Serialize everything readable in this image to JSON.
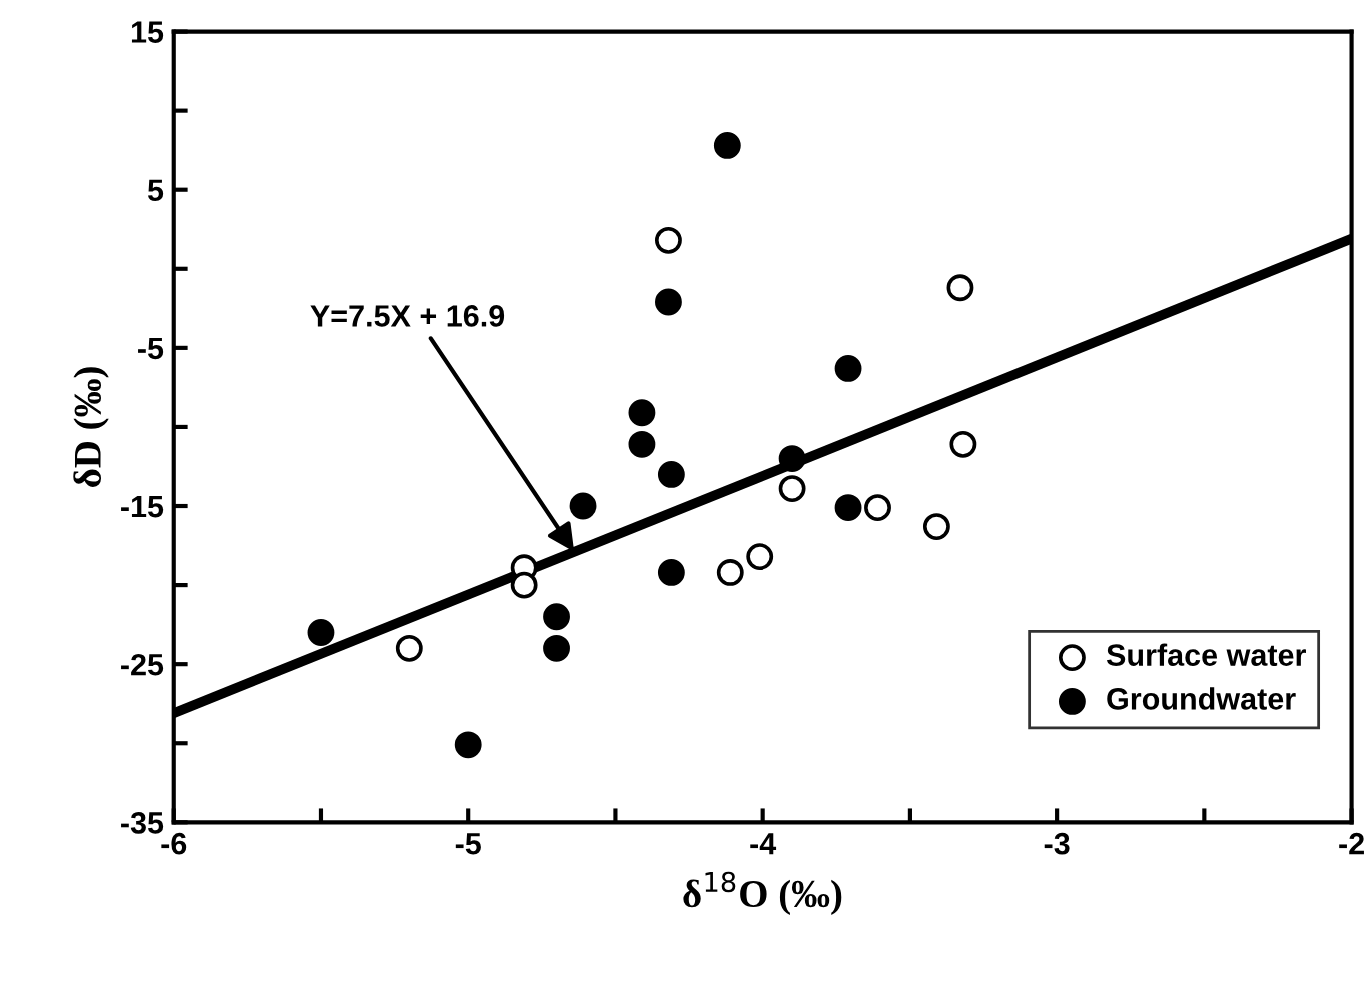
{
  "chart_data": {
    "type": "scatter",
    "xlabel": "δ$^{18}$O (‰)",
    "ylabel": "δD (‰)",
    "xlim": [
      -6,
      -2
    ],
    "ylim": [
      -35,
      15
    ],
    "xticks": [
      -6,
      {
        "value": -5.5,
        "label": null
      },
      -5,
      {
        "value": -4.5,
        "label": null
      },
      -4,
      {
        "value": -3.5,
        "label": null
      },
      -3,
      {
        "value": -2.5,
        "label": null
      },
      -2
    ],
    "yticks": [
      -35,
      {
        "value": -30,
        "label": null
      },
      -25,
      {
        "value": -20,
        "label": null
      },
      -15,
      {
        "value": -10,
        "label": null
      },
      -5,
      {
        "value": 0,
        "label": null
      },
      5,
      {
        "value": 10,
        "label": null
      },
      15
    ],
    "grid": false,
    "legend": "bottom right",
    "marker": "circle",
    "series": [
      {
        "name": "Surface water",
        "color": "#ffffff",
        "x": [
          -4.32,
          -4.81,
          -4.81,
          -5.2,
          -3.33,
          -3.32,
          -3.9,
          -3.61,
          -3.41,
          -4.01,
          -4.11
        ],
        "values": [
          1.8,
          -18.9,
          -20.0,
          -24.0,
          -1.2,
          -11.1,
          -13.9,
          -15.1,
          -16.3,
          -18.2,
          -19.2
        ]
      },
      {
        "name": "Groundwater",
        "color": "#000000",
        "x": [
          -4.12,
          -4.32,
          -4.41,
          -4.41,
          -4.31,
          -4.61,
          -4.31,
          -4.7,
          -4.7,
          -5.5,
          -5.0,
          -3.71,
          -3.9,
          -3.71
        ],
        "values": [
          7.8,
          -2.1,
          -9.1,
          -11.1,
          -13.0,
          -15.0,
          -19.2,
          -22.0,
          -24.0,
          -23.0,
          -30.1,
          -6.3,
          -12.0,
          -15.1
        ]
      },
      {
        "type": "line",
        "marker": "none",
        "color": "#000000",
        "x": [
          -6,
          -2
        ],
        "values": [
          -28.1,
          1.9
        ]
      }
    ],
    "annotations": [
      {
        "text": "Y=7.5X + 16.9",
        "x": -4.64,
        "y": -17.9
      }
    ]
  }
}
